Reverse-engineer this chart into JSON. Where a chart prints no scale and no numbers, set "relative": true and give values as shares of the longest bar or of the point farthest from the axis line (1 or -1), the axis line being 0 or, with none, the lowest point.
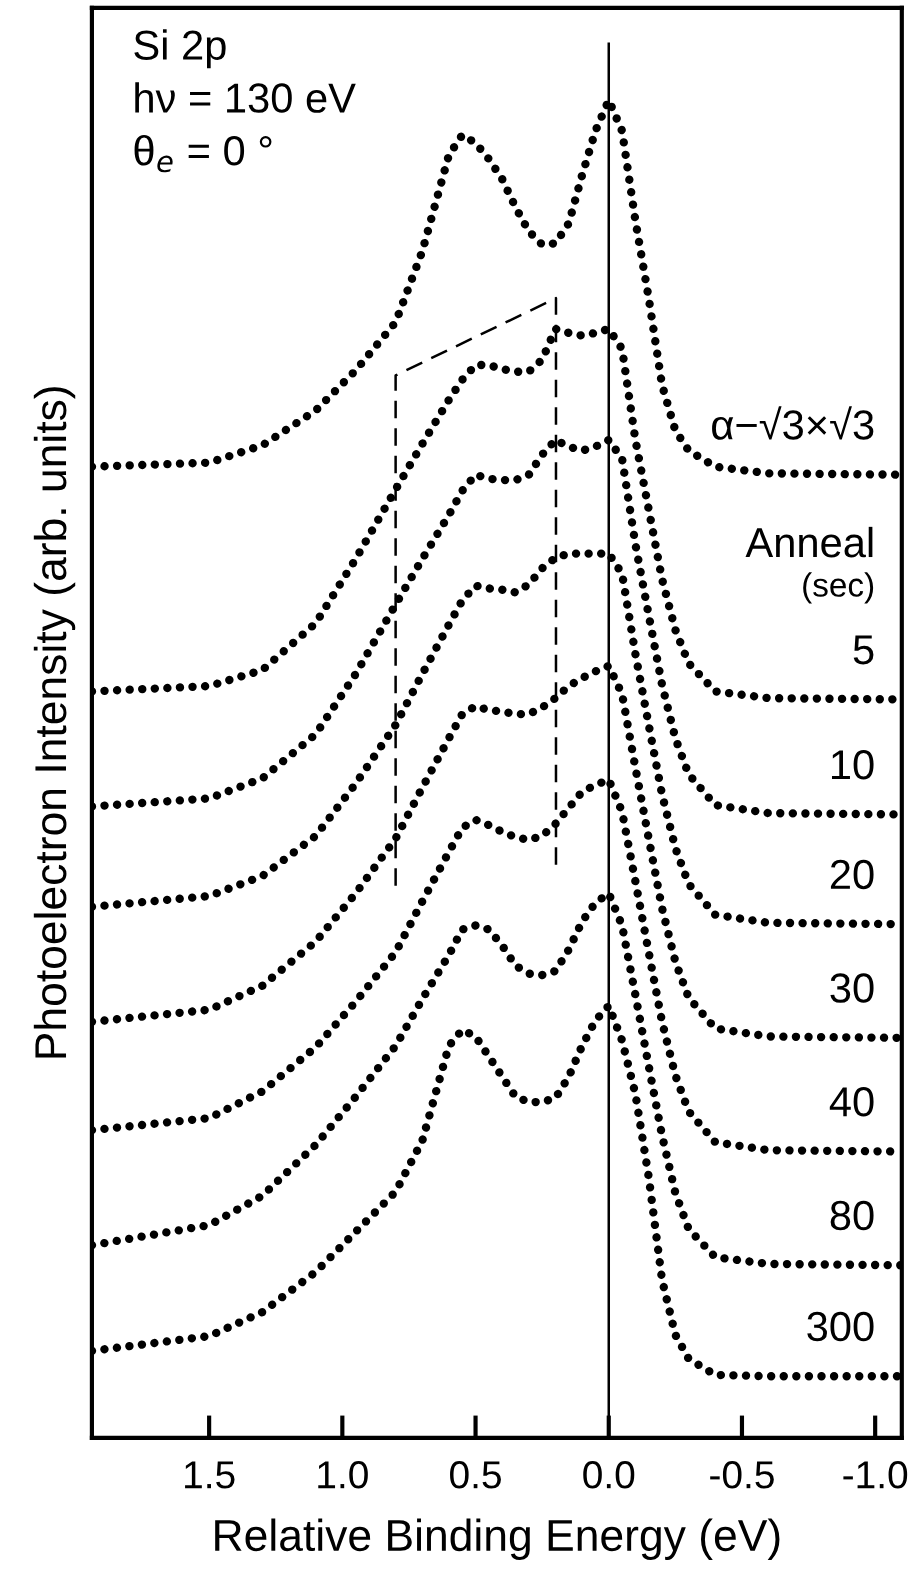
{
  "chart_data": {
    "type": "line",
    "relative": true,
    "xlabel": "Relative Binding Energy (eV)",
    "ylabel": "Photoelectron Intensity (arb. units)",
    "legend_title": "Anneal\n(sec)",
    "annotations": [
      "Si 2p",
      "hν = 130 eV",
      "θ$_{e}$ = 0 °"
    ],
    "x": [
      1.94,
      1.5,
      1.3,
      1.1,
      0.95,
      0.8,
      0.7,
      0.6,
      0.55,
      0.5,
      0.45,
      0.4,
      0.35,
      0.3,
      0.25,
      0.2,
      0.15,
      0.1,
      0.05,
      0.0,
      -0.05,
      -0.1,
      -0.15,
      -0.2,
      -0.25,
      -0.3,
      -0.4,
      -0.6,
      -1.1
    ],
    "xlim": [
      1.94,
      -1.1
    ],
    "xticks": [
      {
        "value": 1.5,
        "label": "1.5"
      },
      {
        "value": 1.0,
        "label": "1.0"
      },
      {
        "value": 0.5,
        "label": "0.5"
      },
      {
        "value": 0.0,
        "label": "0.0"
      },
      {
        "value": -0.5,
        "label": "-0.5"
      },
      {
        "value": -1.0,
        "label": "-1.0"
      }
    ],
    "tick_labels": "x",
    "grid": false,
    "line_style": "dotted",
    "ref_lines": [
      {
        "axis": "x",
        "value": 0.0,
        "color": "#000000",
        "line_style": "solid"
      }
    ],
    "series": [
      {
        "name": "α−√3×√3",
        "color": "#000000",
        "values": [
          0.726,
          0.729,
          0.742,
          0.768,
          0.798,
          0.834,
          0.887,
          0.959,
          0.974,
          0.968,
          0.956,
          0.941,
          0.92,
          0.902,
          0.892,
          0.893,
          0.908,
          0.944,
          0.977,
          1.0,
          0.977,
          0.91,
          0.852,
          0.787,
          0.753,
          0.738,
          0.726,
          0.721,
          0.72
        ]
      },
      {
        "name": "5",
        "color": "#000000",
        "values": [
          0.558,
          0.562,
          0.574,
          0.609,
          0.657,
          0.709,
          0.743,
          0.776,
          0.791,
          0.802,
          0.802,
          0.799,
          0.797,
          0.797,
          0.806,
          0.829,
          0.826,
          0.824,
          0.826,
          0.829,
          0.814,
          0.746,
          0.694,
          0.642,
          0.604,
          0.579,
          0.558,
          0.553,
          0.552
        ]
      },
      {
        "name": "10",
        "color": "#000000",
        "values": [
          0.472,
          0.478,
          0.493,
          0.526,
          0.571,
          0.623,
          0.657,
          0.69,
          0.708,
          0.72,
          0.717,
          0.716,
          0.716,
          0.72,
          0.735,
          0.746,
          0.741,
          0.738,
          0.741,
          0.746,
          0.732,
          0.668,
          0.615,
          0.563,
          0.523,
          0.496,
          0.473,
          0.467,
          0.466
        ]
      },
      {
        "name": "20",
        "color": "#000000",
        "values": [
          0.397,
          0.405,
          0.42,
          0.45,
          0.489,
          0.533,
          0.571,
          0.608,
          0.626,
          0.637,
          0.635,
          0.634,
          0.632,
          0.638,
          0.65,
          0.658,
          0.661,
          0.661,
          0.661,
          0.661,
          0.646,
          0.586,
          0.533,
          0.481,
          0.441,
          0.414,
          0.391,
          0.385,
          0.384
        ]
      },
      {
        "name": "30",
        "color": "#000000",
        "values": [
          0.311,
          0.32,
          0.338,
          0.371,
          0.407,
          0.448,
          0.486,
          0.523,
          0.541,
          0.547,
          0.544,
          0.543,
          0.541,
          0.541,
          0.546,
          0.553,
          0.562,
          0.568,
          0.573,
          0.577,
          0.556,
          0.501,
          0.448,
          0.396,
          0.356,
          0.329,
          0.306,
          0.3,
          0.299
        ]
      },
      {
        "name": "40",
        "color": "#000000",
        "values": [
          0.23,
          0.239,
          0.259,
          0.292,
          0.326,
          0.363,
          0.401,
          0.438,
          0.456,
          0.462,
          0.458,
          0.453,
          0.449,
          0.447,
          0.45,
          0.459,
          0.471,
          0.483,
          0.488,
          0.492,
          0.468,
          0.416,
          0.363,
          0.311,
          0.271,
          0.244,
          0.221,
          0.215,
          0.214
        ]
      },
      {
        "name": "80",
        "color": "#000000",
        "values": [
          0.144,
          0.159,
          0.181,
          0.219,
          0.255,
          0.293,
          0.328,
          0.361,
          0.38,
          0.383,
          0.38,
          0.368,
          0.353,
          0.347,
          0.346,
          0.349,
          0.365,
          0.386,
          0.4,
          0.407,
          0.383,
          0.331,
          0.278,
          0.226,
          0.183,
          0.156,
          0.135,
          0.13,
          0.129
        ]
      },
      {
        "name": "300",
        "color": "#000000",
        "values": [
          0.065,
          0.076,
          0.094,
          0.124,
          0.154,
          0.184,
          0.222,
          0.293,
          0.305,
          0.3,
          0.285,
          0.27,
          0.255,
          0.251,
          0.251,
          0.254,
          0.27,
          0.293,
          0.312,
          0.323,
          0.297,
          0.257,
          0.195,
          0.118,
          0.077,
          0.059,
          0.047,
          0.046,
          0.046
        ]
      }
    ]
  }
}
